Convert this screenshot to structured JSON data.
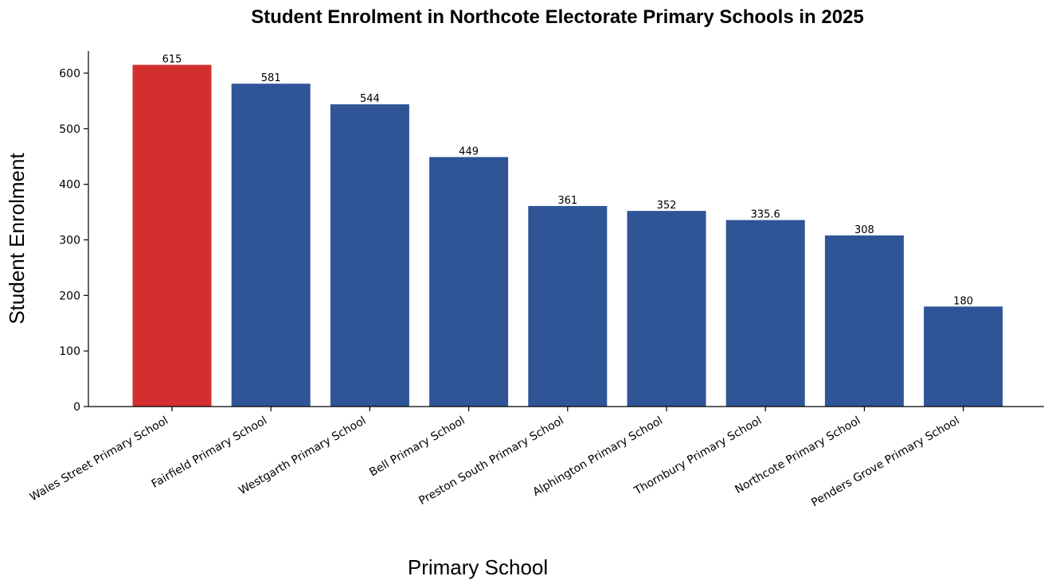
{
  "chart_data": {
    "type": "bar",
    "title": "Student Enrolment in Northcote Electorate Primary Schools in 2025",
    "xlabel": "Primary School",
    "ylabel": "Student Enrolment",
    "categories": [
      "Wales Street Primary School",
      "Fairfield Primary School",
      "Westgarth Primary School",
      "Bell Primary School",
      "Preston South Primary School",
      "Alphington Primary School",
      "Thornbury Primary School",
      "Northcote Primary School",
      "Penders Grove Primary School"
    ],
    "values": [
      615,
      581,
      544,
      449,
      361,
      352,
      335.6,
      308,
      180
    ],
    "data_labels": [
      "615",
      "581",
      "544",
      "449",
      "361",
      "352",
      "335.6",
      "308",
      "180"
    ],
    "ylim": [
      0,
      640
    ],
    "yticks": [
      0,
      100,
      200,
      300,
      400,
      500,
      600
    ],
    "grid": false,
    "legend": "none",
    "colors": {
      "highlight": "#d32f2f",
      "default": "#2f5597"
    },
    "highlight_index": 0
  }
}
